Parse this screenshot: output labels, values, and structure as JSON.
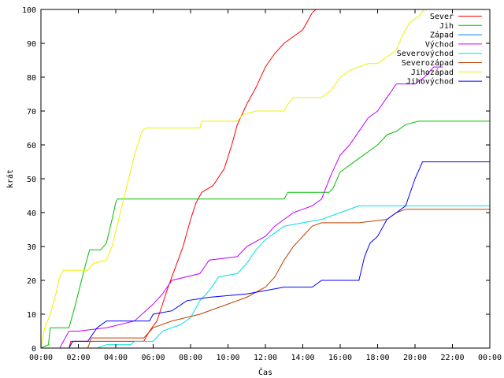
{
  "chart_data": {
    "type": "line",
    "title": "",
    "xlabel": "Čas",
    "ylabel": "krát",
    "xlim": [
      0,
      24
    ],
    "ylim": [
      0,
      100
    ],
    "xticks": [
      "00:00",
      "02:00",
      "04:00",
      "06:00",
      "08:00",
      "10:00",
      "12:00",
      "14:00",
      "16:00",
      "18:00",
      "20:00",
      "22:00",
      "00:00"
    ],
    "yticks": [
      0,
      10,
      20,
      30,
      40,
      50,
      60,
      70,
      80,
      90,
      100
    ],
    "grid": false,
    "legend_position": "top-right",
    "series": [
      {
        "name": "Sever",
        "color": "#ff0000",
        "points": [
          [
            0,
            0
          ],
          [
            1.5,
            0
          ],
          [
            1.6,
            2
          ],
          [
            5.5,
            2
          ],
          [
            5.8,
            5
          ],
          [
            6.2,
            8
          ],
          [
            6.5,
            13
          ],
          [
            6.8,
            18
          ],
          [
            7.2,
            24
          ],
          [
            7.6,
            30
          ],
          [
            8.0,
            38
          ],
          [
            8.3,
            43
          ],
          [
            8.6,
            46
          ],
          [
            9.2,
            48
          ],
          [
            9.8,
            53
          ],
          [
            10.2,
            60
          ],
          [
            10.5,
            66
          ],
          [
            11.0,
            72
          ],
          [
            11.5,
            77
          ],
          [
            12.0,
            83
          ],
          [
            12.5,
            87
          ],
          [
            13.0,
            90
          ],
          [
            13.5,
            92
          ],
          [
            14.0,
            94
          ],
          [
            14.3,
            97
          ],
          [
            14.5,
            99
          ],
          [
            14.7,
            100
          ]
        ]
      },
      {
        "name": "Jih",
        "color": "#00c000",
        "points": [
          [
            0,
            0
          ],
          [
            0.4,
            1
          ],
          [
            0.5,
            6
          ],
          [
            1.5,
            6
          ],
          [
            1.8,
            12
          ],
          [
            2.4,
            25
          ],
          [
            2.6,
            29
          ],
          [
            3.2,
            29
          ],
          [
            3.5,
            31
          ],
          [
            3.8,
            38
          ],
          [
            4.0,
            43
          ],
          [
            4.1,
            44
          ],
          [
            13.0,
            44
          ],
          [
            13.2,
            46
          ],
          [
            15.4,
            46
          ],
          [
            15.6,
            47
          ],
          [
            16.0,
            52
          ],
          [
            16.5,
            54
          ],
          [
            17.0,
            56
          ],
          [
            17.5,
            58
          ],
          [
            18.0,
            60
          ],
          [
            18.5,
            63
          ],
          [
            19.0,
            64
          ],
          [
            19.5,
            66
          ],
          [
            20.2,
            67
          ],
          [
            24,
            67
          ]
        ]
      },
      {
        "name": "Západ",
        "color": "#0080ff",
        "points": [
          [
            0,
            0
          ],
          [
            24,
            0
          ]
        ]
      },
      {
        "name": "Východ",
        "color": "#c000ff",
        "points": [
          [
            0,
            0
          ],
          [
            1.0,
            0
          ],
          [
            1.2,
            2
          ],
          [
            1.5,
            5
          ],
          [
            2.0,
            5
          ],
          [
            3.5,
            6
          ],
          [
            5.0,
            8
          ],
          [
            6.0,
            13
          ],
          [
            6.5,
            16
          ],
          [
            7.0,
            20
          ],
          [
            8.5,
            22
          ],
          [
            9.0,
            26
          ],
          [
            10.5,
            27
          ],
          [
            11.0,
            30
          ],
          [
            12.0,
            33
          ],
          [
            12.5,
            36
          ],
          [
            13.0,
            38
          ],
          [
            13.5,
            40
          ],
          [
            14.0,
            41
          ],
          [
            14.5,
            42
          ],
          [
            15.0,
            44
          ],
          [
            15.5,
            51
          ],
          [
            16.0,
            57
          ],
          [
            16.5,
            60
          ],
          [
            17.0,
            64
          ],
          [
            17.5,
            68
          ],
          [
            18.0,
            70
          ],
          [
            18.5,
            74
          ],
          [
            19.0,
            78
          ],
          [
            20.0,
            78
          ],
          [
            20.5,
            80
          ],
          [
            21.0,
            83
          ],
          [
            21.5,
            83
          ]
        ]
      },
      {
        "name": "Severovýchod",
        "color": "#00e0e0",
        "points": [
          [
            0,
            0
          ],
          [
            3.0,
            0
          ],
          [
            3.5,
            1
          ],
          [
            4.8,
            1
          ],
          [
            5.0,
            2
          ],
          [
            6.0,
            2
          ],
          [
            6.5,
            5
          ],
          [
            7.5,
            7
          ],
          [
            8.0,
            9
          ],
          [
            8.5,
            14
          ],
          [
            9.0,
            17
          ],
          [
            9.5,
            21
          ],
          [
            10.5,
            22
          ],
          [
            11.0,
            25
          ],
          [
            11.5,
            29
          ],
          [
            12.0,
            32
          ],
          [
            12.5,
            34
          ],
          [
            13.0,
            36
          ],
          [
            14.0,
            37
          ],
          [
            15.0,
            38
          ],
          [
            16.0,
            40
          ],
          [
            17.0,
            42
          ],
          [
            24,
            42
          ]
        ]
      },
      {
        "name": "Severozápad",
        "color": "#c04000",
        "points": [
          [
            0,
            0
          ],
          [
            2.5,
            0
          ],
          [
            2.7,
            3
          ],
          [
            5.5,
            3
          ],
          [
            6.0,
            6
          ],
          [
            7.0,
            8
          ],
          [
            8.5,
            10
          ],
          [
            9.5,
            12
          ],
          [
            10.0,
            13
          ],
          [
            11.0,
            15
          ],
          [
            12.0,
            18
          ],
          [
            12.5,
            21
          ],
          [
            13.0,
            26
          ],
          [
            13.5,
            30
          ],
          [
            14.0,
            33
          ],
          [
            14.5,
            36
          ],
          [
            15.0,
            37
          ],
          [
            17.0,
            37
          ],
          [
            18.5,
            38
          ],
          [
            19.0,
            40
          ],
          [
            19.5,
            41
          ],
          [
            24,
            41
          ]
        ]
      },
      {
        "name": "Jihozápad",
        "color": "#f0f000",
        "points": [
          [
            0,
            0
          ],
          [
            0.2,
            6
          ],
          [
            0.5,
            10
          ],
          [
            0.8,
            16
          ],
          [
            1.0,
            21
          ],
          [
            1.2,
            23
          ],
          [
            2.5,
            23
          ],
          [
            2.8,
            25
          ],
          [
            3.5,
            26
          ],
          [
            3.8,
            30
          ],
          [
            4.2,
            39
          ],
          [
            4.6,
            48
          ],
          [
            5.0,
            57
          ],
          [
            5.4,
            64
          ],
          [
            5.6,
            65
          ],
          [
            8.5,
            65
          ],
          [
            8.6,
            67
          ],
          [
            10.5,
            67
          ],
          [
            10.8,
            69
          ],
          [
            11.5,
            70
          ],
          [
            13.0,
            70
          ],
          [
            13.2,
            72
          ],
          [
            13.5,
            74
          ],
          [
            15.0,
            74
          ],
          [
            15.5,
            76
          ],
          [
            16.0,
            80
          ],
          [
            16.5,
            82
          ],
          [
            17.5,
            84
          ],
          [
            18.0,
            84
          ],
          [
            18.5,
            86
          ],
          [
            19.0,
            88
          ],
          [
            19.3,
            92
          ],
          [
            19.7,
            96
          ],
          [
            20.2,
            98
          ],
          [
            20.5,
            100
          ]
        ]
      },
      {
        "name": "Jihovýchod",
        "color": "#0000ff",
        "points": [
          [
            0,
            0
          ],
          [
            1.5,
            0
          ],
          [
            1.7,
            2
          ],
          [
            2.5,
            2
          ],
          [
            3.0,
            6
          ],
          [
            3.5,
            8
          ],
          [
            5.8,
            8
          ],
          [
            6.0,
            10
          ],
          [
            7.0,
            11
          ],
          [
            7.8,
            14
          ],
          [
            9.0,
            15
          ],
          [
            11.0,
            16
          ],
          [
            13.0,
            18
          ],
          [
            14.5,
            18
          ],
          [
            15.0,
            20
          ],
          [
            17.0,
            20
          ],
          [
            17.3,
            27
          ],
          [
            17.6,
            31
          ],
          [
            18.0,
            33
          ],
          [
            18.5,
            38
          ],
          [
            19.0,
            40
          ],
          [
            19.5,
            42
          ],
          [
            20.0,
            50
          ],
          [
            20.4,
            55
          ],
          [
            24,
            55
          ]
        ]
      }
    ]
  }
}
